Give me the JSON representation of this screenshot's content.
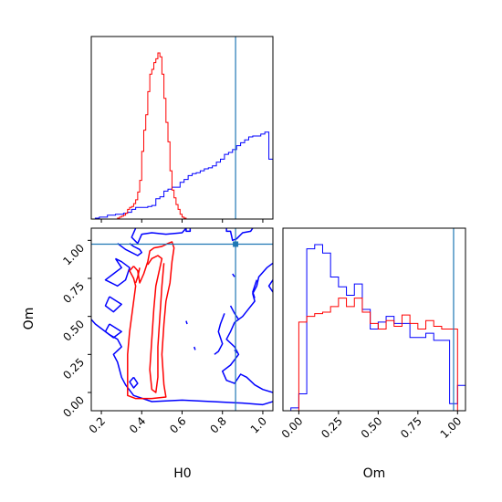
{
  "chart_data": {
    "type": "corner",
    "parameters": [
      "H0",
      "Om"
    ],
    "colors": {
      "run_a": "#0000ff",
      "run_b": "#ff0000",
      "truth": "#1f77b4"
    },
    "truth": {
      "H0": 0.865,
      "Om": 0.975
    },
    "panels": {
      "h0_hist": {
        "type": "histogram",
        "xlim": [
          0.15,
          1.05
        ],
        "xticks": [
          0.2,
          0.4,
          0.6,
          0.8,
          1.0
        ],
        "series": [
          {
            "bins": [
              0.15,
              0.17,
              0.19,
              0.21,
              0.23,
              0.25,
              0.27,
              0.29,
              0.31,
              0.33,
              0.35,
              0.37,
              0.39,
              0.41,
              0.43,
              0.45,
              0.47,
              0.49,
              0.51,
              0.53,
              0.55,
              0.57,
              0.59,
              0.61,
              0.63,
              0.65,
              0.67,
              0.69,
              0.71,
              0.73,
              0.75,
              0.77,
              0.79,
              0.81,
              0.83,
              0.85,
              0.87,
              0.89,
              0.91,
              0.93,
              0.95,
              0.97,
              0.99,
              1.01,
              1.03,
              1.05
            ],
            "counts": [
              0,
              1,
              2,
              2,
              4,
              4,
              5,
              5,
              6,
              7,
              10,
              12,
              12,
              12,
              13,
              14,
              21,
              23,
              29,
              31,
              33,
              33,
              38,
              41,
              45,
              47,
              48,
              50,
              52,
              53,
              55,
              59,
              62,
              67,
              69,
              72,
              76,
              79,
              82,
              85,
              86,
              86,
              88,
              90,
              62
            ]
          },
          {
            "bins": [
              0.28,
              0.29,
              0.3,
              0.31,
              0.32,
              0.33,
              0.34,
              0.35,
              0.36,
              0.37,
              0.38,
              0.39,
              0.4,
              0.41,
              0.42,
              0.43,
              0.44,
              0.45,
              0.46,
              0.47,
              0.48,
              0.49,
              0.5,
              0.51,
              0.52,
              0.53,
              0.54,
              0.55,
              0.56,
              0.57,
              0.58,
              0.59,
              0.6,
              0.61,
              0.62
            ],
            "counts": [
              1,
              2,
              3,
              4,
              6,
              10,
              12,
              13,
              16,
              20,
              28,
              40,
              70,
              92,
              108,
              132,
              150,
              155,
              162,
              166,
              172,
              168,
              150,
              125,
              100,
              80,
              50,
              30,
              22,
              15,
              10,
              5,
              2,
              1
            ]
          }
        ]
      },
      "om_hist": {
        "type": "histogram",
        "xlim": [
          -0.1,
          1.05
        ],
        "xticks": [
          0.0,
          0.25,
          0.5,
          0.75,
          1.0
        ],
        "series": [
          {
            "bins": [
              -0.1,
              -0.05,
              0.0,
              0.05,
              0.1,
              0.15,
              0.2,
              0.25,
              0.3,
              0.35,
              0.4,
              0.45,
              0.5,
              0.55,
              0.6,
              0.65,
              0.7,
              0.75,
              0.8,
              0.85,
              0.9,
              0.95,
              1.0,
              1.05
            ],
            "counts": [
              0,
              2,
              12,
              115,
              118,
              112,
              95,
              88,
              82,
              90,
              72,
              58,
              63,
              67,
              62,
              62,
              52,
              52,
              55,
              50,
              50,
              5,
              18
            ]
          },
          {
            "bins": [
              0.0,
              0.05,
              0.1,
              0.15,
              0.2,
              0.25,
              0.3,
              0.35,
              0.4,
              0.45,
              0.5,
              0.55,
              0.6,
              0.65,
              0.7,
              0.75,
              0.8,
              0.85,
              0.9,
              0.95,
              1.0
            ],
            "counts": [
              63,
              67,
              69,
              70,
              74,
              80,
              74,
              80,
              70,
              62,
              58,
              64,
              60,
              68,
              62,
              58,
              64,
              60,
              58,
              58
            ]
          }
        ]
      },
      "joint": {
        "type": "contour",
        "xlim": [
          0.15,
          1.05
        ],
        "ylim": [
          -0.12,
          1.08
        ],
        "xticks": [
          0.2,
          0.4,
          0.6,
          0.8,
          1.0
        ],
        "yticks": [
          0.0,
          0.25,
          0.5,
          0.75,
          1.0
        ],
        "blue_contours": [
          [
            [
              0.37,
              1.08
            ],
            [
              0.35,
              1.02
            ],
            [
              0.38,
              0.98
            ],
            [
              0.4,
              1.04
            ],
            [
              0.45,
              1.05
            ],
            [
              0.52,
              1.04
            ],
            [
              0.6,
              1.05
            ],
            [
              0.62,
              1.08
            ]
          ],
          [
            [
              0.62,
              1.08
            ],
            [
              0.62,
              1.06
            ],
            [
              0.64,
              1.06
            ],
            [
              0.64,
              1.08
            ]
          ],
          [
            [
              0.82,
              1.08
            ],
            [
              0.82,
              1.06
            ],
            [
              0.84,
              1.06
            ],
            [
              0.85,
              1.0
            ],
            [
              0.87,
              1.01
            ],
            [
              0.9,
              1.05
            ],
            [
              0.94,
              1.06
            ],
            [
              0.95,
              1.08
            ]
          ],
          [
            [
              0.27,
              0.88
            ],
            [
              0.3,
              0.82
            ],
            [
              0.26,
              0.78
            ],
            [
              0.22,
              0.74
            ],
            [
              0.28,
              0.7
            ],
            [
              0.32,
              0.74
            ],
            [
              0.34,
              0.82
            ],
            [
              0.3,
              0.86
            ],
            [
              0.27,
              0.88
            ]
          ],
          [
            [
              0.24,
              0.63
            ],
            [
              0.3,
              0.58
            ],
            [
              0.26,
              0.53
            ],
            [
              0.22,
              0.57
            ],
            [
              0.24,
              0.63
            ]
          ],
          [
            [
              0.24,
              0.45
            ],
            [
              0.3,
              0.4
            ],
            [
              0.26,
              0.36
            ],
            [
              0.22,
              0.4
            ],
            [
              0.24,
              0.45
            ]
          ],
          [
            [
              0.36,
              0.1
            ],
            [
              0.38,
              0.06
            ],
            [
              0.36,
              0.03
            ],
            [
              0.34,
              0.07
            ],
            [
              0.36,
              0.1
            ]
          ],
          [
            [
              0.28,
              0.98
            ],
            [
              0.32,
              0.94
            ],
            [
              0.38,
              0.9
            ],
            [
              0.4,
              0.92
            ],
            [
              0.39,
              0.94
            ],
            [
              0.36,
              0.96
            ],
            [
              0.34,
              0.98
            ]
          ],
          [
            [
              0.15,
              0.48
            ],
            [
              0.17,
              0.45
            ],
            [
              0.2,
              0.42
            ],
            [
              0.24,
              0.38
            ],
            [
              0.28,
              0.35
            ],
            [
              0.3,
              0.3
            ],
            [
              0.26,
              0.25
            ],
            [
              0.28,
              0.2
            ],
            [
              0.29,
              0.15
            ],
            [
              0.3,
              0.1
            ],
            [
              0.32,
              0.05
            ],
            [
              0.36,
              -0.02
            ],
            [
              0.45,
              -0.06
            ],
            [
              0.6,
              -0.05
            ],
            [
              0.75,
              -0.06
            ],
            [
              0.9,
              -0.07
            ],
            [
              1.0,
              -0.08
            ],
            [
              1.05,
              -0.06
            ]
          ],
          [
            [
              1.05,
              0.85
            ],
            [
              1.02,
              0.82
            ],
            [
              0.98,
              0.76
            ],
            [
              0.97,
              0.7
            ],
            [
              0.95,
              0.65
            ],
            [
              0.96,
              0.6
            ],
            [
              0.93,
              0.55
            ],
            [
              0.9,
              0.5
            ],
            [
              0.86,
              0.46
            ],
            [
              0.84,
              0.4
            ],
            [
              0.82,
              0.35
            ],
            [
              0.86,
              0.3
            ],
            [
              0.88,
              0.25
            ],
            [
              0.84,
              0.18
            ],
            [
              0.8,
              0.14
            ],
            [
              0.82,
              0.08
            ],
            [
              0.86,
              0.06
            ],
            [
              0.89,
              0.12
            ],
            [
              0.92,
              0.1
            ],
            [
              0.96,
              0.05
            ],
            [
              1.0,
              0.02
            ],
            [
              1.05,
              0.0
            ]
          ],
          [
            [
              1.05,
              0.74
            ],
            [
              1.03,
              0.7
            ],
            [
              1.05,
              0.66
            ]
          ],
          [
            [
              0.97,
              0.74
            ],
            [
              0.95,
              0.66
            ],
            [
              0.96,
              0.62
            ]
          ],
          [
            [
              0.84,
              0.57
            ],
            [
              0.86,
              0.52
            ],
            [
              0.88,
              0.48
            ]
          ],
          [
            [
              0.81,
              0.52
            ],
            [
              0.79,
              0.45
            ],
            [
              0.78,
              0.4
            ],
            [
              0.8,
              0.32
            ],
            [
              0.78,
              0.27
            ],
            [
              0.76,
              0.25
            ]
          ],
          [
            [
              0.86,
              0.28
            ],
            [
              0.87,
              0.26
            ]
          ],
          [
            [
              0.62,
              0.47
            ],
            [
              0.625,
              0.45
            ]
          ],
          [
            [
              0.66,
              0.3
            ],
            [
              0.665,
              0.28
            ]
          ],
          [
            [
              0.85,
              0.78
            ],
            [
              0.86,
              0.76
            ]
          ]
        ],
        "red_contours": [
          [
            [
              0.36,
              0.83
            ],
            [
              0.34,
              0.8
            ],
            [
              0.36,
              0.75
            ],
            [
              0.37,
              0.7
            ],
            [
              0.36,
              0.6
            ],
            [
              0.35,
              0.5
            ],
            [
              0.34,
              0.4
            ],
            [
              0.33,
              0.25
            ],
            [
              0.33,
              0.1
            ],
            [
              0.33,
              -0.02
            ],
            [
              0.37,
              -0.04
            ],
            [
              0.45,
              -0.04
            ],
            [
              0.52,
              -0.03
            ],
            [
              0.51,
              0.05
            ],
            [
              0.5,
              0.25
            ],
            [
              0.51,
              0.45
            ],
            [
              0.52,
              0.6
            ],
            [
              0.54,
              0.72
            ],
            [
              0.55,
              0.86
            ],
            [
              0.56,
              0.95
            ],
            [
              0.55,
              0.99
            ],
            [
              0.53,
              0.98
            ],
            [
              0.5,
              0.96
            ],
            [
              0.46,
              0.95
            ],
            [
              0.44,
              0.93
            ],
            [
              0.43,
              0.86
            ],
            [
              0.41,
              0.78
            ],
            [
              0.39,
              0.72
            ],
            [
              0.38,
              0.8
            ],
            [
              0.36,
              0.83
            ]
          ],
          [
            [
              0.39,
              0.82
            ],
            [
              0.38,
              0.76
            ],
            [
              0.37,
              0.72
            ]
          ],
          [
            [
              0.43,
              0.84
            ],
            [
              0.45,
              0.88
            ],
            [
              0.48,
              0.9
            ],
            [
              0.5,
              0.88
            ],
            [
              0.49,
              0.82
            ],
            [
              0.47,
              0.7
            ],
            [
              0.46,
              0.55
            ],
            [
              0.45,
              0.35
            ],
            [
              0.44,
              0.15
            ],
            [
              0.45,
              0.02
            ],
            [
              0.47,
              0.0
            ],
            [
              0.48,
              0.1
            ],
            [
              0.48,
              0.3
            ],
            [
              0.49,
              0.5
            ],
            [
              0.5,
              0.7
            ],
            [
              0.51,
              0.85
            ]
          ]
        ]
      }
    }
  }
}
